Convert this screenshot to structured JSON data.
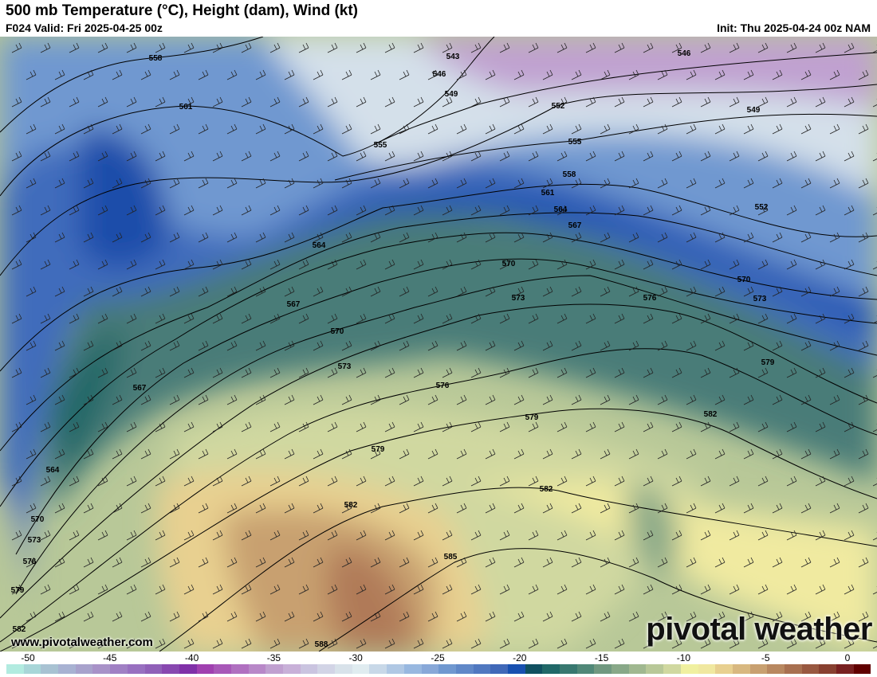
{
  "header": {
    "title": "500 mb Temperature (°C), Height (dam), Wind (kt)",
    "valid": "F024 Valid: Fri 2025-04-25 00z",
    "init": "Init: Thu 2025-04-24 00z NAM"
  },
  "branding": {
    "url": "www.pivotalweather.com",
    "logo": "pivotal weather"
  },
  "map": {
    "variable": "500 mb temperature",
    "contour_labels": [
      "558",
      "561",
      "543",
      "546",
      "549",
      "552",
      "555",
      "555",
      "558",
      "561",
      "564",
      "567",
      "546",
      "549",
      "552",
      "564",
      "567",
      "570",
      "570",
      "573",
      "576",
      "570",
      "573",
      "579",
      "573",
      "576",
      "579",
      "582",
      "579",
      "582",
      "582",
      "585",
      "588",
      "567",
      "564",
      "570",
      "573",
      "576",
      "579",
      "582"
    ]
  },
  "colorbar": {
    "unit": "°C",
    "tick_labels": [
      "-50",
      "-45",
      "-40",
      "-35",
      "-30",
      "-25",
      "-20",
      "-15",
      "-10",
      "-5",
      "0"
    ],
    "colors": [
      "#b2ebe0",
      "#a8d6d8",
      "#a8c2d2",
      "#a8b2d2",
      "#a8a2cc",
      "#a892c8",
      "#a080c4",
      "#9870c0",
      "#9060b8",
      "#8848b0",
      "#8030a8",
      "#a040b0",
      "#a858b8",
      "#b070c0",
      "#b888c8",
      "#c0a0d0",
      "#c8b0d8",
      "#cac4e0",
      "#d2d4e6",
      "#d8e2ea",
      "#e0ecf0",
      "#c8d8e8",
      "#b0c8e4",
      "#98b8e0",
      "#88a8d8",
      "#7098d0",
      "#6088c8",
      "#5078c0",
      "#4068b8",
      "#1850b0",
      "#105060",
      "#206868",
      "#387870",
      "#508878",
      "#709880",
      "#88a888",
      "#a0b890",
      "#b8c898",
      "#d0d8a0",
      "#f0f0a0",
      "#f0e8a0",
      "#e8d090",
      "#d8b880",
      "#c8a070",
      "#b88860",
      "#a87050",
      "#985840",
      "#884030",
      "#782020",
      "#600000"
    ]
  }
}
